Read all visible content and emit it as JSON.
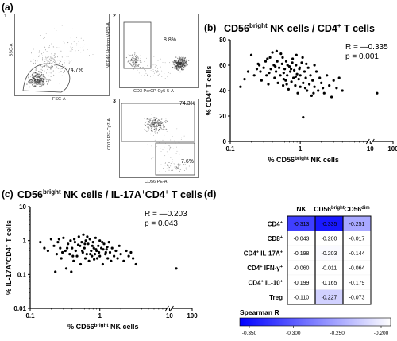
{
  "panel_labels": [
    "(a)",
    "(b)",
    "(c)",
    "(d)"
  ],
  "panel_a": {
    "plots": [
      {
        "num": "1",
        "x_axis": "FSC-A",
        "y_axis": "SSC-A",
        "gate_pct": "74.7%"
      },
      {
        "num": "2",
        "x_axis": "CD3 PerCP-Cy5-5-A",
        "y_axis": "NKP46 Horizon V450-A",
        "gate_pct": "8.8%"
      },
      {
        "num": "3",
        "x_axis": "CD56 PE-A",
        "y_axis": "CD16 PE-Cy7-A",
        "gate_pct_top": "74.3%",
        "gate_pct_bottom": "7.6%"
      }
    ]
  },
  "panel_b_title": "CD56bright NK cells / CD4+ T cells",
  "panel_c_title": "CD56bright NK cells / IL-17A+CD4+ T cells",
  "chart_data": [
    {
      "type": "scatter",
      "title": "CD56bright NK cells / CD4+ T cells",
      "xlabel": "% CD56bright NK cells",
      "ylabel": "% CD4+ T cells",
      "x_scale": "log",
      "xlim": [
        0.1,
        100
      ],
      "ylim": [
        0,
        80
      ],
      "x_ticks": [
        "0.1",
        "1",
        "10",
        "100"
      ],
      "y_ticks": [
        "0",
        "20",
        "40",
        "60",
        "80"
      ],
      "annotations": [
        "R = —0.335",
        "p = 0.001"
      ],
      "points": [
        [
          0.14,
          43
        ],
        [
          0.16,
          49
        ],
        [
          0.18,
          55
        ],
        [
          0.2,
          68
        ],
        [
          0.22,
          52
        ],
        [
          0.25,
          61
        ],
        [
          0.27,
          55
        ],
        [
          0.28,
          48
        ],
        [
          0.3,
          58
        ],
        [
          0.32,
          63
        ],
        [
          0.33,
          52
        ],
        [
          0.35,
          45
        ],
        [
          0.37,
          66
        ],
        [
          0.38,
          57
        ],
        [
          0.4,
          70
        ],
        [
          0.42,
          60
        ],
        [
          0.43,
          50
        ],
        [
          0.45,
          55
        ],
        [
          0.47,
          63
        ],
        [
          0.48,
          46
        ],
        [
          0.5,
          58
        ],
        [
          0.52,
          52
        ],
        [
          0.53,
          69
        ],
        [
          0.55,
          61
        ],
        [
          0.57,
          44
        ],
        [
          0.58,
          54
        ],
        [
          0.6,
          57
        ],
        [
          0.62,
          48
        ],
        [
          0.63,
          63
        ],
        [
          0.65,
          52
        ],
        [
          0.68,
          41
        ],
        [
          0.7,
          59
        ],
        [
          0.72,
          55
        ],
        [
          0.75,
          47
        ],
        [
          0.77,
          62
        ],
        [
          0.8,
          50
        ],
        [
          0.82,
          56
        ],
        [
          0.85,
          44
        ],
        [
          0.87,
          60
        ],
        [
          0.9,
          53
        ],
        [
          0.92,
          38
        ],
        [
          0.95,
          49
        ],
        [
          0.97,
          57
        ],
        [
          1.0,
          43
        ],
        [
          1.0,
          52
        ],
        [
          1.05,
          62
        ],
        [
          1.1,
          19
        ],
        [
          1.1,
          46
        ],
        [
          1.15,
          55
        ],
        [
          1.2,
          50
        ],
        [
          1.25,
          40
        ],
        [
          1.3,
          58
        ],
        [
          1.35,
          45
        ],
        [
          1.4,
          52
        ],
        [
          1.45,
          36
        ],
        [
          1.5,
          48
        ],
        [
          1.6,
          43
        ],
        [
          1.7,
          55
        ],
        [
          1.8,
          40
        ],
        [
          1.9,
          50
        ],
        [
          2.0,
          46
        ],
        [
          2.2,
          38
        ],
        [
          2.4,
          52
        ],
        [
          2.6,
          44
        ],
        [
          2.8,
          35
        ],
        [
          3.0,
          48
        ],
        [
          3.3,
          42
        ],
        [
          3.6,
          50
        ],
        [
          4.0,
          40
        ],
        [
          0.26,
          60
        ],
        [
          0.34,
          65
        ],
        [
          0.44,
          59
        ],
        [
          0.56,
          66
        ],
        [
          0.66,
          60
        ],
        [
          0.78,
          65
        ],
        [
          0.88,
          68
        ],
        [
          1.08,
          66
        ],
        [
          1.22,
          61
        ],
        [
          0.46,
          71
        ],
        [
          0.74,
          57
        ],
        [
          0.98,
          58
        ],
        [
          1.6,
          60
        ],
        [
          0.24,
          57
        ],
        [
          0.36,
          54
        ],
        [
          0.64,
          45
        ],
        [
          0.86,
          51
        ],
        [
          1.18,
          42
        ],
        [
          1.55,
          38
        ],
        [
          2.1,
          42
        ],
        [
          0.58,
          49
        ],
        [
          20,
          38
        ]
      ]
    },
    {
      "type": "scatter",
      "title": "CD56bright NK cells / IL-17A+CD4+ T cells",
      "xlabel": "% CD56bright NK cells",
      "ylabel": "% IL-17A+CD4+ T cells",
      "x_scale": "log",
      "y_scale": "log",
      "xlim": [
        0.1,
        100
      ],
      "ylim": [
        0.01,
        10
      ],
      "x_ticks": [
        "0.1",
        "1",
        "10",
        "100"
      ],
      "y_ticks": [
        "0.01",
        "0.1",
        "1",
        "10"
      ],
      "annotations": [
        "R = —0.203",
        "p = 0.043"
      ],
      "points": [
        [
          0.14,
          0.9
        ],
        [
          0.16,
          0.6
        ],
        [
          0.18,
          0.5
        ],
        [
          0.2,
          1.1
        ],
        [
          0.22,
          0.7
        ],
        [
          0.24,
          0.4
        ],
        [
          0.25,
          0.9
        ],
        [
          0.27,
          0.6
        ],
        [
          0.28,
          0.3
        ],
        [
          0.3,
          1.2
        ],
        [
          0.32,
          0.5
        ],
        [
          0.33,
          0.15
        ],
        [
          0.35,
          0.8
        ],
        [
          0.37,
          0.4
        ],
        [
          0.38,
          1.0
        ],
        [
          0.4,
          0.6
        ],
        [
          0.42,
          0.25
        ],
        [
          0.43,
          1.1
        ],
        [
          0.45,
          0.5
        ],
        [
          0.47,
          0.35
        ],
        [
          0.5,
          1.3
        ],
        [
          0.52,
          0.7
        ],
        [
          0.53,
          0.2
        ],
        [
          0.55,
          0.9
        ],
        [
          0.57,
          0.45
        ],
        [
          0.58,
          1.5
        ],
        [
          0.6,
          0.6
        ],
        [
          0.62,
          0.3
        ],
        [
          0.63,
          1.0
        ],
        [
          0.65,
          0.4
        ],
        [
          0.68,
          0.8
        ],
        [
          0.7,
          0.25
        ],
        [
          0.72,
          1.1
        ],
        [
          0.75,
          0.5
        ],
        [
          0.77,
          0.35
        ],
        [
          0.8,
          0.9
        ],
        [
          0.82,
          0.6
        ],
        [
          0.85,
          0.4
        ],
        [
          0.87,
          1.2
        ],
        [
          0.9,
          0.5
        ],
        [
          0.92,
          0.3
        ],
        [
          0.95,
          0.7
        ],
        [
          0.97,
          0.45
        ],
        [
          1.0,
          1.0
        ],
        [
          1.0,
          0.35
        ],
        [
          1.05,
          0.6
        ],
        [
          1.1,
          0.2
        ],
        [
          1.15,
          0.8
        ],
        [
          1.2,
          0.4
        ],
        [
          1.25,
          0.55
        ],
        [
          1.3,
          0.3
        ],
        [
          1.35,
          0.9
        ],
        [
          1.4,
          0.45
        ],
        [
          1.45,
          0.25
        ],
        [
          1.5,
          0.6
        ],
        [
          1.6,
          0.35
        ],
        [
          1.7,
          0.5
        ],
        [
          1.8,
          0.3
        ],
        [
          1.9,
          0.7
        ],
        [
          2.0,
          0.4
        ],
        [
          2.2,
          0.25
        ],
        [
          2.4,
          0.5
        ],
        [
          2.6,
          0.35
        ],
        [
          2.8,
          0.45
        ],
        [
          3.0,
          0.3
        ],
        [
          3.3,
          0.2
        ],
        [
          0.26,
          1.1
        ],
        [
          0.34,
          0.6
        ],
        [
          0.44,
          0.9
        ],
        [
          0.56,
          0.5
        ],
        [
          0.66,
          1.3
        ],
        [
          0.78,
          0.7
        ],
        [
          0.88,
          0.55
        ],
        [
          1.08,
          0.9
        ],
        [
          1.22,
          0.45
        ],
        [
          0.29,
          0.45
        ],
        [
          0.41,
          0.35
        ],
        [
          0.49,
          0.75
        ],
        [
          0.61,
          0.8
        ],
        [
          0.73,
          0.4
        ],
        [
          0.83,
          0.28
        ],
        [
          1.12,
          0.55
        ],
        [
          1.28,
          0.65
        ],
        [
          0.23,
          0.12
        ],
        [
          0.39,
          0.12
        ],
        [
          20,
          0.15
        ]
      ]
    },
    {
      "type": "heatmap",
      "columns": [
        "NK",
        "CD56bright",
        "CD56dim"
      ],
      "rows": [
        "CD4+",
        "CD8+",
        "CD4+ IL-17A+",
        "CD4+ IFN-γ+",
        "CD4+ IL-10+",
        "Treg"
      ],
      "values": [
        [
          -0.313,
          -0.335,
          -0.251
        ],
        [
          -0.043,
          -0.2,
          -0.017
        ],
        [
          -0.198,
          -0.203,
          -0.144
        ],
        [
          -0.06,
          -0.011,
          -0.064
        ],
        [
          -0.199,
          -0.165,
          -0.179
        ],
        [
          -0.11,
          -0.227,
          -0.073
        ]
      ],
      "value_labels": [
        [
          "-0.313",
          "-0.335",
          "-0.251"
        ],
        [
          "-0.043",
          "-0.200",
          "-0.017"
        ],
        [
          "-0.198",
          "-0.203",
          "-0.144"
        ],
        [
          "-0.060",
          "-0.011",
          "-0.064"
        ],
        [
          "-0.199",
          "-0.165",
          "-0.179"
        ],
        [
          "-0.110",
          "-0.227",
          "-0.073"
        ]
      ],
      "colorbar": {
        "label": "Spearman R",
        "ticks": [
          "-0.350",
          "-0.300",
          "-0.250",
          "-0.200"
        ],
        "range": [
          -0.35,
          -0.2
        ]
      },
      "colors": {
        "min": "#0000ff",
        "max": "#ffffff"
      }
    }
  ]
}
